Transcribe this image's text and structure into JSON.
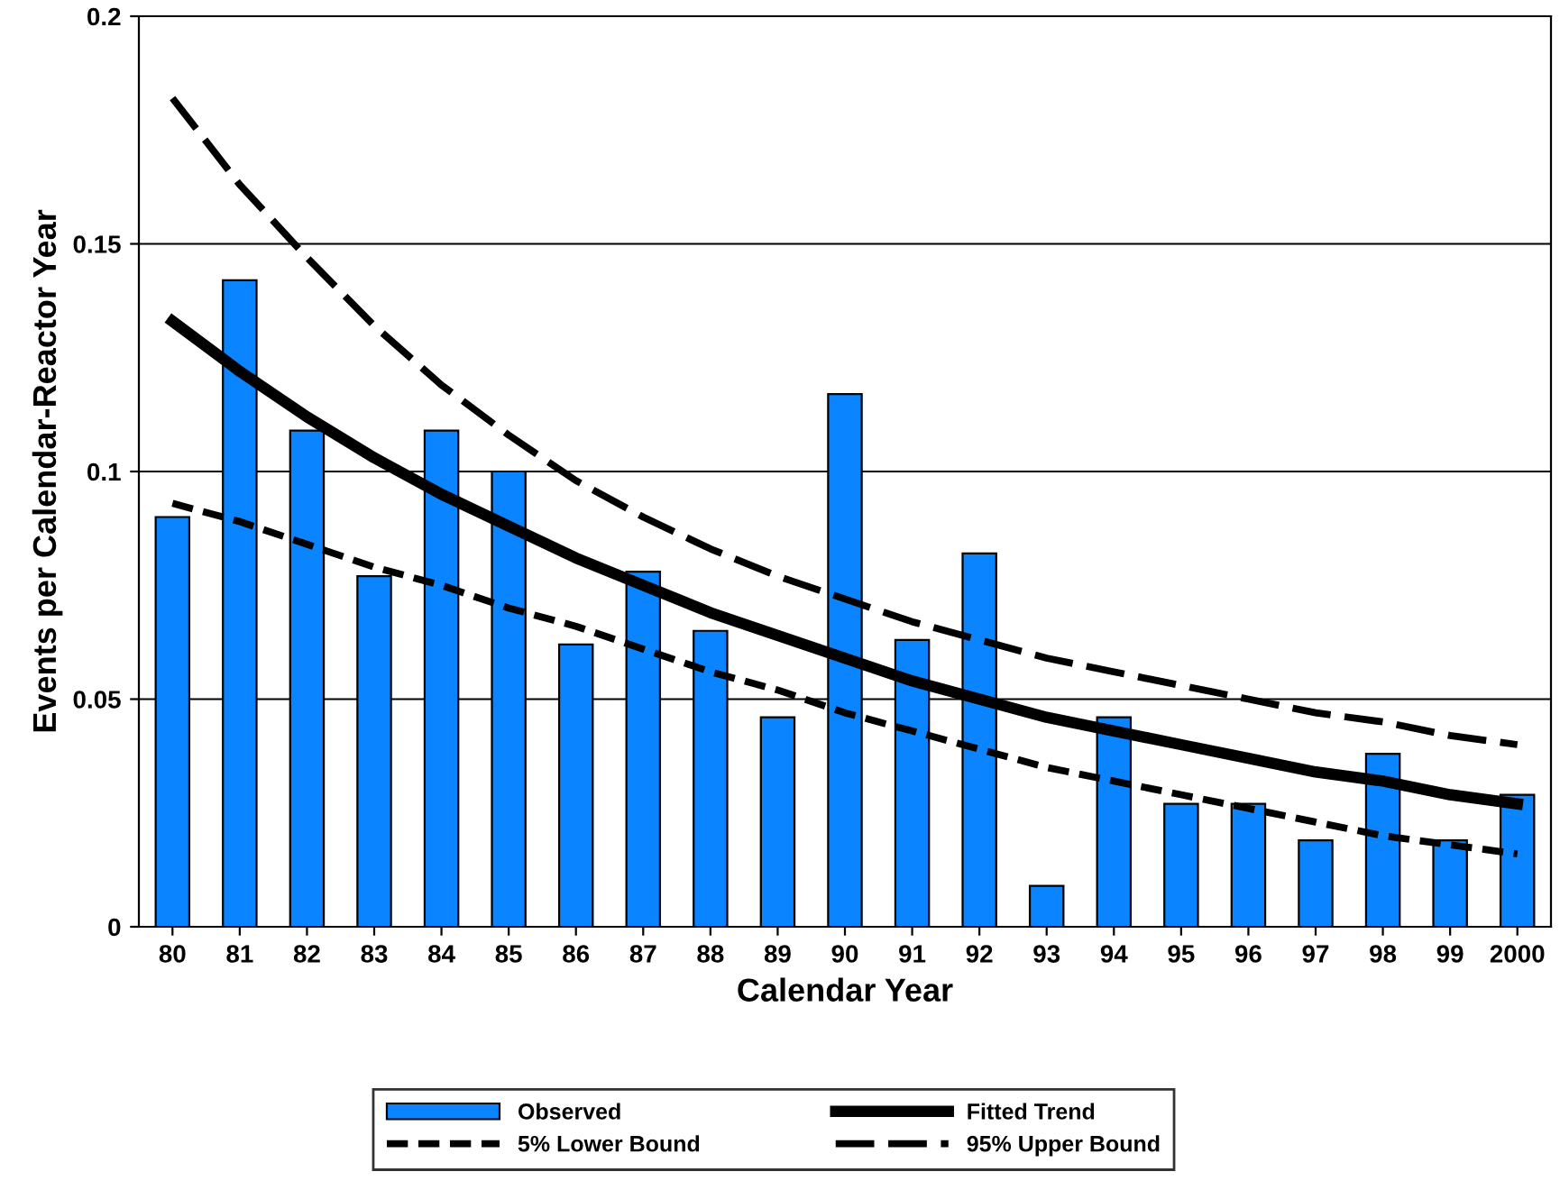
{
  "chart_data": {
    "type": "bar",
    "xlabel": "Calendar Year",
    "ylabel": "Events per Calendar-Reactor Year",
    "categories": [
      "80",
      "81",
      "82",
      "83",
      "84",
      "85",
      "86",
      "87",
      "88",
      "89",
      "90",
      "91",
      "92",
      "93",
      "94",
      "95",
      "96",
      "97",
      "98",
      "99",
      "2000"
    ],
    "series": [
      {
        "name": "Observed",
        "color": "#0a84ff",
        "values": [
          0.09,
          0.142,
          0.109,
          0.077,
          0.109,
          0.1,
          0.062,
          0.078,
          0.065,
          0.046,
          0.117,
          0.063,
          0.082,
          0.009,
          0.046,
          0.027,
          0.027,
          0.019,
          0.038,
          0.019,
          0.029
        ]
      },
      {
        "name": "5% Lower Bound",
        "type": "line",
        "line_style": "dashed",
        "color": "#000000",
        "values": [
          0.093,
          0.089,
          0.084,
          0.079,
          0.075,
          0.07,
          0.066,
          0.061,
          0.056,
          0.052,
          0.047,
          0.043,
          0.039,
          0.035,
          0.032,
          0.029,
          0.026,
          0.023,
          0.02,
          0.018,
          0.016
        ]
      },
      {
        "name": "Fitted Trend",
        "type": "line",
        "line_style": "solid",
        "color": "#000000",
        "values": [
          0.133,
          0.122,
          0.112,
          0.103,
          0.095,
          0.088,
          0.081,
          0.075,
          0.069,
          0.064,
          0.059,
          0.054,
          0.05,
          0.046,
          0.043,
          0.04,
          0.037,
          0.034,
          0.032,
          0.029,
          0.027
        ]
      },
      {
        "name": "95% Upper Bound",
        "type": "line",
        "line_style": "longdash",
        "color": "#000000",
        "values": [
          0.182,
          0.163,
          0.147,
          0.132,
          0.119,
          0.108,
          0.098,
          0.09,
          0.083,
          0.077,
          0.072,
          0.067,
          0.063,
          0.059,
          0.056,
          0.053,
          0.05,
          0.047,
          0.045,
          0.042,
          0.04
        ]
      }
    ],
    "ylim": [
      0,
      0.2
    ],
    "yticks": [
      0,
      0.05,
      0.1,
      0.15,
      0.2
    ],
    "grid": "y",
    "legend": "bottom"
  }
}
